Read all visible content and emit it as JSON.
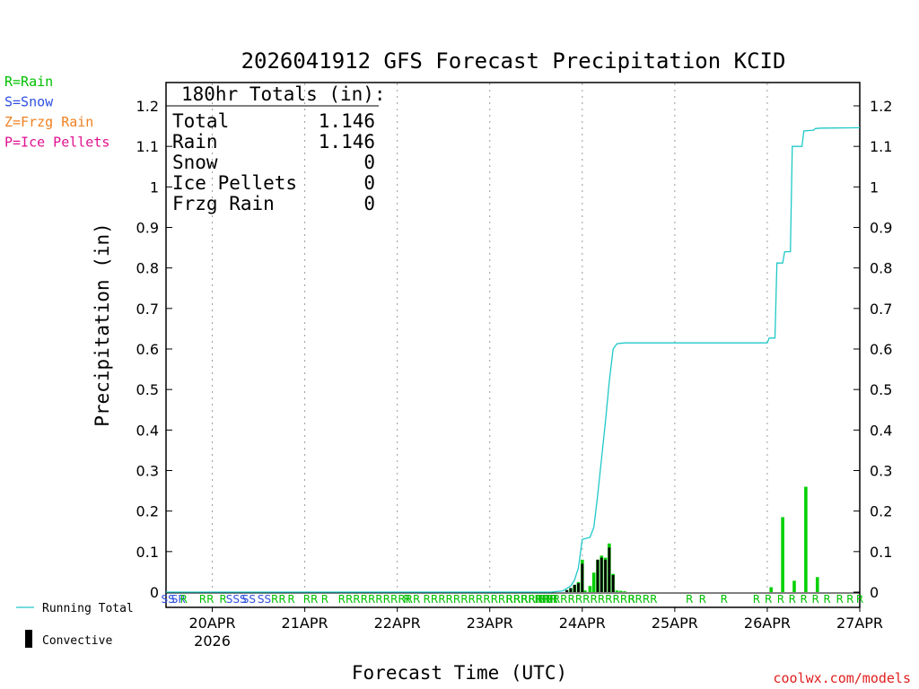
{
  "chart_data": {
    "type": "bar",
    "title": "2026041912 GFS Forecast Precipitation KCID",
    "xlabel": "Forecast Time (UTC)",
    "ylabel": "Precipitation (in)",
    "ylim": [
      0,
      1.25
    ],
    "y_ticks": [
      "0",
      "0.1",
      "0.2",
      "0.3",
      "0.4",
      "0.5",
      "0.6",
      "0.7",
      "0.8",
      "0.9",
      "1",
      "1.1",
      "1.2"
    ],
    "x_range_hours": [
      0,
      180
    ],
    "x_ticks": [
      {
        "hour": 12,
        "label": "20APR",
        "sublabel": "2026"
      },
      {
        "hour": 36,
        "label": "21APR"
      },
      {
        "hour": 60,
        "label": "22APR"
      },
      {
        "hour": 84,
        "label": "23APR"
      },
      {
        "hour": 108,
        "label": "24APR"
      },
      {
        "hour": 132,
        "label": "25APR"
      },
      {
        "hour": 156,
        "label": "26APR"
      },
      {
        "hour": 180,
        "label": "27APR"
      }
    ],
    "totals_box": {
      "header": "180hr Totals (in):",
      "rows": [
        {
          "label": "Total",
          "value": "1.146"
        },
        {
          "label": "Rain",
          "value": "1.146"
        },
        {
          "label": "Snow",
          "value": "0"
        },
        {
          "label": "Ice Pellets",
          "value": "0"
        },
        {
          "label": "Frzg Rain",
          "value": "0"
        }
      ]
    },
    "ptype_legend": [
      {
        "text": "R=Rain",
        "color": "#00c000"
      },
      {
        "text": "S=Snow",
        "color": "#3050e0"
      },
      {
        "text": "Z=Frzg Rain",
        "color": "#f08020"
      },
      {
        "text": "P=Ice Pellets",
        "color": "#e01090"
      }
    ],
    "series": [
      {
        "name": "Total precipitation",
        "color": "#00d000",
        "x": [
          104,
          105,
          106,
          107,
          108,
          108.7,
          110,
          111,
          112,
          113,
          114,
          115,
          116,
          117,
          118,
          119,
          157,
          160,
          163,
          166,
          169
        ],
        "values": [
          0.005,
          0.01,
          0.018,
          0.025,
          0.08,
          0.004,
          0.015,
          0.048,
          0.08,
          0.09,
          0.085,
          0.12,
          0.045,
          0.004,
          0.003,
          0.002,
          0.012,
          0.185,
          0.028,
          0.26,
          0.037
        ]
      },
      {
        "name": "Convective",
        "color": "#000000",
        "x": [
          104,
          105,
          106,
          107,
          108,
          112,
          113,
          114,
          115,
          116
        ],
        "values": [
          0.005,
          0.01,
          0.018,
          0.022,
          0.07,
          0.08,
          0.085,
          0.08,
          0.11,
          0.042
        ]
      },
      {
        "name": "Running Total",
        "color": "#20c8c8",
        "x": [
          0,
          100,
          103,
          105,
          106,
          107,
          108,
          110,
          111,
          112,
          113,
          114,
          115,
          116,
          117,
          118,
          119,
          156,
          156.5,
          158,
          158.5,
          160,
          160.5,
          162,
          162.5,
          165,
          165.5,
          168,
          168.5,
          170,
          180
        ],
        "values": [
          0,
          0,
          0.003,
          0.015,
          0.03,
          0.06,
          0.13,
          0.135,
          0.16,
          0.24,
          0.33,
          0.42,
          0.52,
          0.6,
          0.613,
          0.614,
          0.615,
          0.615,
          0.627,
          0.627,
          0.812,
          0.812,
          0.84,
          0.84,
          1.1,
          1.1,
          1.138,
          1.14,
          1.144,
          1.145,
          1.146
        ]
      }
    ],
    "ptype_markers": [
      {
        "text": "SS",
        "hour": 0.5,
        "color": "#3050e0"
      },
      {
        "text": "SR",
        "hour": 3.2,
        "color": "#3050e0"
      },
      {
        "text": "R",
        "hour": 4.6,
        "color": "#00c000"
      },
      {
        "text": "RR",
        "hour": 10.5,
        "color": "#00c000"
      },
      {
        "text": "R",
        "hour": 14.8,
        "color": "#00c000"
      },
      {
        "text": "SSS",
        "hour": 18.2,
        "color": "#3050e0"
      },
      {
        "text": "SS",
        "hour": 21.5,
        "color": "#3050e0"
      },
      {
        "text": "SS",
        "hour": 25.5,
        "color": "#3050e0"
      },
      {
        "text": "RR",
        "hour": 29.2,
        "color": "#00c000"
      },
      {
        "text": "R",
        "hour": 32.5,
        "color": "#00c000"
      },
      {
        "text": "RR",
        "hour": 37.5,
        "color": "#00c000"
      },
      {
        "text": "R",
        "hour": 41.2,
        "color": "#00c000"
      },
      {
        "text": "RRRRRRRRRRR",
        "hour": 55.3,
        "color": "#00c000"
      },
      {
        "text": "R",
        "hour": 62.5,
        "color": "#00c000"
      },
      {
        "text": "RRRRRRRRRRRRRRRRRR",
        "hour": 84.2,
        "color": "#00c000"
      },
      {
        "text": "RRRRRR",
        "hour": 94,
        "color": "#00c000"
      },
      {
        "text": "RRR",
        "hour": 98.5,
        "color": "#00c000"
      },
      {
        "text": "RRRRRRRRRRRRRRR",
        "hour": 111,
        "color": "#00c000"
      },
      {
        "text": "R",
        "hour": 120.8,
        "color": "#00c000"
      },
      {
        "text": "R",
        "hour": 126.5,
        "color": "#00c000"
      },
      {
        "text": "R",
        "hour": 135.8,
        "color": "#00c000"
      },
      {
        "text": "R",
        "hour": 139.2,
        "color": "#00c000"
      },
      {
        "text": "R",
        "hour": 144.8,
        "color": "#00c000"
      },
      {
        "text": "R",
        "hour": 153.2,
        "color": "#00c000"
      },
      {
        "text": "R",
        "hour": 156.3,
        "color": "#00c000"
      },
      {
        "text": "R",
        "hour": 159.5,
        "color": "#00c000"
      },
      {
        "text": "R",
        "hour": 162.5,
        "color": "#00c000"
      },
      {
        "text": "R",
        "hour": 165.5,
        "color": "#00c000"
      },
      {
        "text": "R",
        "hour": 168.5,
        "color": "#00c000"
      },
      {
        "text": "R",
        "hour": 171.5,
        "color": "#00c000"
      },
      {
        "text": "R",
        "hour": 174.8,
        "color": "#00c000"
      },
      {
        "text": "R",
        "hour": 177.5,
        "color": "#00c000"
      },
      {
        "text": "R",
        "hour": 180,
        "color": "#00c000"
      }
    ],
    "legend": [
      {
        "name": "Running Total",
        "color": "#20c8c8"
      },
      {
        "name": "Convective",
        "color": "#000000"
      }
    ],
    "grid": "dotted vertical lines at day boundaries",
    "credit": "coolwx.com/models"
  }
}
